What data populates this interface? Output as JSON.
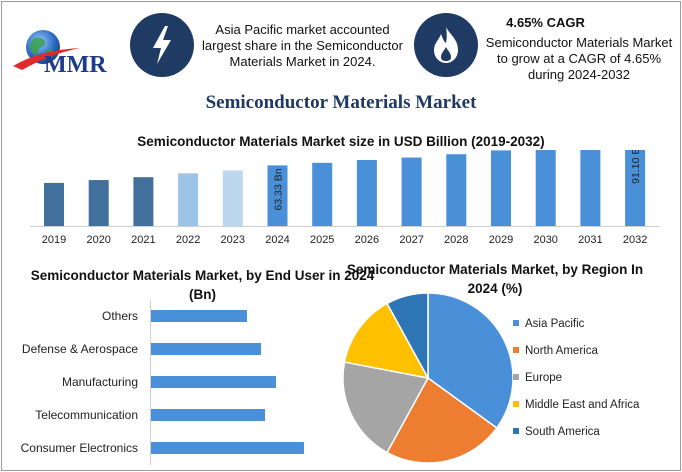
{
  "header": {
    "logo_text": "MMR",
    "info1": {
      "icon": "lightning-bolt-icon",
      "text": "Asia Pacific market accounted largest share in the Semiconductor Materials Market in 2024."
    },
    "info2": {
      "icon": "flame-icon",
      "heading": "4.65% CAGR",
      "text": "Semiconductor Materials Market to grow at a CAGR of 4.65% during 2024-2032"
    }
  },
  "title": "Semiconductor Materials Market",
  "colors": {
    "bar_dark": "#41709c",
    "bar_blue": "#4a90d9",
    "bar_light1": "#9dc3e6",
    "bar_light2": "#bdd7ee",
    "navy": "#1f3b63"
  },
  "chart_data": [
    {
      "type": "bar",
      "title": "Semiconductor Materials Market size in USD Billion (2019-2032)",
      "categories": [
        "2019",
        "2020",
        "2021",
        "2022",
        "2023",
        "2024",
        "2025",
        "2026",
        "2027",
        "2028",
        "2029",
        "2030",
        "2031",
        "2032"
      ],
      "values": [
        45,
        48,
        51,
        55,
        58,
        63.33,
        66,
        69,
        71.5,
        75,
        79,
        83,
        87,
        91.1
      ],
      "data_labels": {
        "2024": "63.33 Bn",
        "2032": "91.10 Bn"
      },
      "colors": [
        "#41709c",
        "#41709c",
        "#41709c",
        "#9dc3e6",
        "#bdd7ee",
        "#4a90d9",
        "#4a90d9",
        "#4a90d9",
        "#4a90d9",
        "#4a90d9",
        "#4a90d9",
        "#4a90d9",
        "#4a90d9",
        "#4a90d9"
      ]
    },
    {
      "type": "bar",
      "orientation": "horizontal",
      "title": "Semiconductor Materials Market, by End User in 2024 (Bn)",
      "categories": [
        "Others",
        "Defense & Aerospace",
        "Manufacturing",
        "Telecommunication",
        "Consumer Electronics"
      ],
      "values": [
        96,
        110,
        125,
        114,
        153
      ],
      "color": "#4a90d9"
    },
    {
      "type": "pie",
      "title": "Semiconductor Materials Market, by Region In 2024 (%)",
      "labels": [
        "Asia Pacific",
        "North America",
        "Europe",
        "Middle East and Africa",
        "South America"
      ],
      "values": [
        35,
        23,
        20,
        14,
        8
      ],
      "colors": [
        "#4a90d9",
        "#ed7d31",
        "#a5a5a5",
        "#ffc000",
        "#2e75b6"
      ]
    }
  ]
}
